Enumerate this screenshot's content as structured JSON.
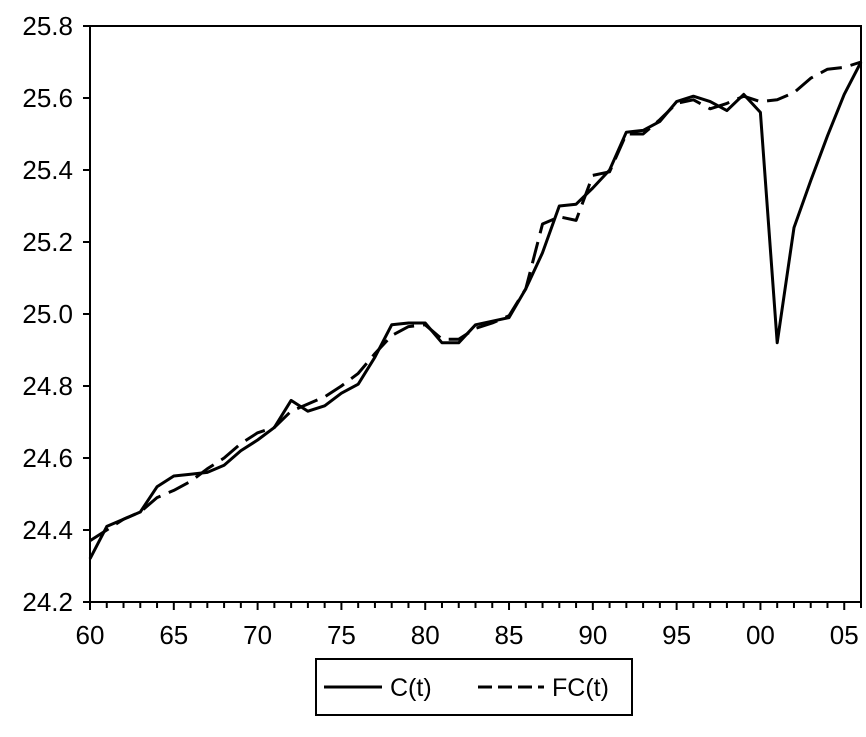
{
  "chart_data": {
    "type": "line",
    "title": "",
    "xlabel": "",
    "ylabel": "",
    "xlim": [
      1960,
      2006
    ],
    "ylim": [
      24.2,
      25.8
    ],
    "y_ticks": [
      24.2,
      24.4,
      24.6,
      24.8,
      25.0,
      25.2,
      25.4,
      25.6,
      25.8
    ],
    "y_tick_labels": [
      "24.2",
      "24.4",
      "24.6",
      "24.8",
      "25.0",
      "25.2",
      "25.4",
      "25.6",
      "25.8"
    ],
    "x_ticks": [
      1960,
      1965,
      1970,
      1975,
      1980,
      1985,
      1990,
      1995,
      2000,
      2005
    ],
    "x_tick_labels": [
      "60",
      "65",
      "70",
      "75",
      "80",
      "85",
      "90",
      "95",
      "00",
      "05"
    ],
    "grid": false,
    "legend_position": "bottom-center",
    "x": [
      1960,
      1961,
      1962,
      1963,
      1964,
      1965,
      1966,
      1967,
      1968,
      1969,
      1970,
      1971,
      1972,
      1973,
      1974,
      1975,
      1976,
      1977,
      1978,
      1979,
      1980,
      1981,
      1982,
      1983,
      1984,
      1985,
      1986,
      1987,
      1988,
      1989,
      1990,
      1991,
      1992,
      1993,
      1994,
      1995,
      1996,
      1997,
      1998,
      1999,
      2000,
      2001,
      2002,
      2003,
      2004,
      2005,
      2006
    ],
    "series": [
      {
        "name": "C(t)",
        "style": "solid",
        "color": "#000000",
        "values": [
          24.32,
          24.41,
          24.43,
          24.45,
          24.52,
          24.55,
          24.555,
          24.56,
          24.58,
          24.62,
          24.65,
          24.685,
          24.76,
          24.73,
          24.745,
          24.78,
          24.805,
          24.88,
          24.97,
          24.975,
          24.975,
          24.92,
          24.92,
          24.97,
          24.98,
          24.99,
          25.07,
          25.17,
          25.3,
          25.305,
          25.35,
          25.4,
          25.505,
          25.51,
          25.535,
          25.59,
          25.605,
          25.59,
          25.565,
          25.61,
          25.56,
          24.92,
          25.24,
          25.37,
          25.495,
          25.61,
          25.7
        ]
      },
      {
        "name": "FC(t)",
        "style": "dashed",
        "color": "#000000",
        "values": [
          24.37,
          24.4,
          24.43,
          24.45,
          24.49,
          24.51,
          24.535,
          24.57,
          24.6,
          24.64,
          24.67,
          24.685,
          24.73,
          24.75,
          24.77,
          24.8,
          24.835,
          24.89,
          24.94,
          24.965,
          24.97,
          24.93,
          24.93,
          24.96,
          24.975,
          24.995,
          25.07,
          25.25,
          25.27,
          25.26,
          25.385,
          25.395,
          25.5,
          25.5,
          25.54,
          25.585,
          25.595,
          25.57,
          25.585,
          25.605,
          25.59,
          25.595,
          25.615,
          25.655,
          25.68,
          25.685,
          25.7
        ]
      }
    ]
  }
}
